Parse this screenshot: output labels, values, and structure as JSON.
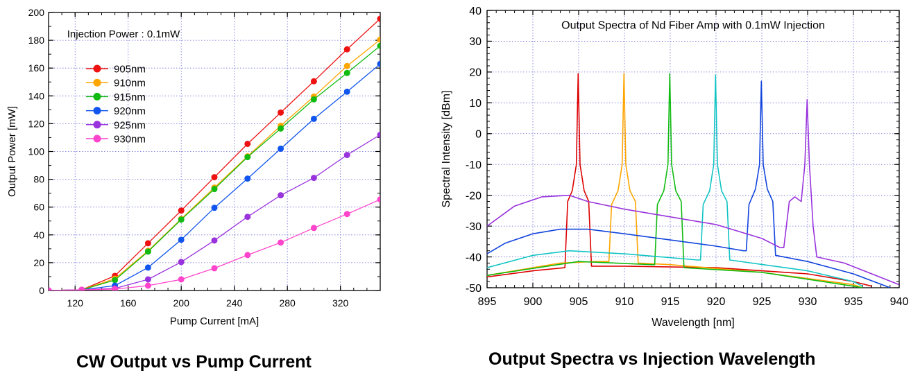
{
  "captions": {
    "left": "CW Output vs Pump Current",
    "right": "Output Spectra vs  Injection Wavelength"
  },
  "chart_data": [
    {
      "type": "line",
      "title": "Injection Power : 0.1mW",
      "xlabel": "Pump Current [mA]",
      "ylabel": "Output Power [mW]",
      "xlim": [
        100,
        350
      ],
      "ylim": [
        0,
        200
      ],
      "xticks": [
        120,
        160,
        200,
        240,
        280,
        320
      ],
      "yticks": [
        0,
        20,
        40,
        60,
        80,
        100,
        120,
        140,
        160,
        180,
        200
      ],
      "grid": true,
      "markers": true,
      "legend_position": "upper-left",
      "x": [
        100,
        125,
        150,
        175,
        200,
        225,
        250,
        275,
        300,
        325,
        350
      ],
      "series": [
        {
          "name": "905nm",
          "color": "#ee1111",
          "values": [
            0,
            0.5,
            10.5,
            34,
            57.5,
            81.5,
            105.5,
            128,
            150.5,
            173.5,
            195.5
          ]
        },
        {
          "name": "910nm",
          "color": "#ffa500",
          "values": [
            0,
            0.5,
            8.5,
            28.5,
            51.5,
            74,
            96.5,
            118.5,
            139.5,
            161.5,
            180.5
          ]
        },
        {
          "name": "915nm",
          "color": "#11bb11",
          "values": [
            0,
            0.5,
            7.5,
            28,
            51,
            73,
            96,
            116.5,
            137.5,
            156.5,
            176
          ]
        },
        {
          "name": "920nm",
          "color": "#1155ee",
          "values": [
            0,
            0.5,
            3.5,
            16.5,
            36.5,
            59.5,
            80.5,
            102,
            123.5,
            143,
            163
          ]
        },
        {
          "name": "925nm",
          "color": "#9933dd",
          "values": [
            0,
            0.5,
            1.5,
            8,
            20.5,
            36,
            53,
            68.5,
            81,
            97.5,
            112
          ]
        },
        {
          "name": "930nm",
          "color": "#ff44cc",
          "values": [
            0,
            0.5,
            1,
            3.5,
            8,
            16,
            25.5,
            34.5,
            45,
            55,
            65.5
          ]
        }
      ]
    },
    {
      "type": "line",
      "title": "Output Spectra of Nd Fiber Amp with 0.1mW Injection",
      "xlabel": "Wavelength [nm]",
      "ylabel": "Spectral Intensity [dBm]",
      "xlim": [
        895,
        940
      ],
      "ylim": [
        -50,
        40
      ],
      "xticks": [
        895,
        900,
        905,
        910,
        915,
        920,
        925,
        930,
        935,
        940
      ],
      "yticks": [
        -50,
        -40,
        -30,
        -20,
        -10,
        0,
        10,
        20,
        30,
        40
      ],
      "grid": true,
      "legend": false,
      "series": [
        {
          "color": "#dd0000",
          "points": [
            [
              895,
              -46.5
            ],
            [
              900,
              -44.5
            ],
            [
              903.5,
              -43.5
            ],
            [
              903.8,
              -22
            ],
            [
              904.3,
              -18.5
            ],
            [
              904.75,
              -10
            ],
            [
              904.95,
              19.5
            ],
            [
              905.15,
              -10
            ],
            [
              905.6,
              -18.5
            ],
            [
              906.1,
              -22
            ],
            [
              906.4,
              -43
            ],
            [
              910,
              -43
            ],
            [
              920,
              -43.5
            ],
            [
              930,
              -45.5
            ],
            [
              935,
              -48
            ],
            [
              937,
              -49.5
            ]
          ]
        },
        {
          "color": "#ffa500",
          "points": [
            [
              895,
              -46
            ],
            [
              903,
              -42
            ],
            [
              907,
              -41.5
            ],
            [
              908.3,
              -41.5
            ],
            [
              908.6,
              -23
            ],
            [
              909.3,
              -18.5
            ],
            [
              909.75,
              -10
            ],
            [
              909.95,
              19.5
            ],
            [
              910.15,
              -10
            ],
            [
              910.6,
              -18.5
            ],
            [
              911.2,
              -22
            ],
            [
              911.5,
              -42
            ],
            [
              915,
              -42.5
            ],
            [
              925,
              -45
            ],
            [
              935,
              -49
            ],
            [
              936,
              -50
            ]
          ]
        },
        {
          "color": "#11bb11",
          "points": [
            [
              895,
              -46
            ],
            [
              905,
              -41.5
            ],
            [
              913,
              -42.5
            ],
            [
              913.3,
              -42.5
            ],
            [
              913.6,
              -23
            ],
            [
              914.3,
              -18.5
            ],
            [
              914.75,
              -10
            ],
            [
              914.95,
              19.5
            ],
            [
              915.15,
              -10
            ],
            [
              915.6,
              -18.5
            ],
            [
              916.2,
              -22
            ],
            [
              916.5,
              -43.5
            ],
            [
              925,
              -45
            ],
            [
              935,
              -49.5
            ],
            [
              936,
              -50
            ]
          ]
        },
        {
          "color": "#11c4c4",
          "points": [
            [
              895,
              -43.5
            ],
            [
              900,
              -39.5
            ],
            [
              904,
              -38
            ],
            [
              910,
              -39
            ],
            [
              918,
              -41
            ],
            [
              918.3,
              -41
            ],
            [
              918.6,
              -23
            ],
            [
              919.3,
              -18.5
            ],
            [
              919.75,
              -10
            ],
            [
              919.95,
              19
            ],
            [
              920.15,
              -10
            ],
            [
              920.6,
              -18.5
            ],
            [
              921.2,
              -22
            ],
            [
              921.5,
              -41
            ],
            [
              930,
              -44.5
            ],
            [
              935,
              -48
            ],
            [
              936,
              -49.5
            ]
          ]
        },
        {
          "color": "#1144dd",
          "points": [
            [
              895,
              -39
            ],
            [
              897,
              -35.5
            ],
            [
              900,
              -32.5
            ],
            [
              903,
              -31
            ],
            [
              906,
              -31
            ],
            [
              910,
              -32.5
            ],
            [
              915,
              -34.5
            ],
            [
              920,
              -36.5
            ],
            [
              923,
              -38
            ],
            [
              923.3,
              -38
            ],
            [
              923.6,
              -23
            ],
            [
              924.3,
              -18
            ],
            [
              924.75,
              -10
            ],
            [
              924.95,
              17
            ],
            [
              925.15,
              -10
            ],
            [
              925.6,
              -18
            ],
            [
              926.2,
              -22
            ],
            [
              926.5,
              -39.5
            ],
            [
              930,
              -41.5
            ],
            [
              935,
              -45.5
            ],
            [
              939,
              -50
            ]
          ]
        },
        {
          "color": "#9933dd",
          "points": [
            [
              895,
              -30
            ],
            [
              898,
              -23.5
            ],
            [
              901,
              -20.5
            ],
            [
              904,
              -20
            ],
            [
              906,
              -22
            ],
            [
              910,
              -24.5
            ],
            [
              915,
              -27
            ],
            [
              920,
              -29.5
            ],
            [
              925,
              -34
            ],
            [
              927,
              -37
            ],
            [
              927.4,
              -37
            ],
            [
              928,
              -22
            ],
            [
              928.6,
              -20.5
            ],
            [
              929.3,
              -22
            ],
            [
              929.7,
              -10
            ],
            [
              929.95,
              11
            ],
            [
              930.2,
              -10
            ],
            [
              930.6,
              -30
            ],
            [
              931,
              -40
            ],
            [
              934,
              -42
            ],
            [
              937,
              -45.5
            ],
            [
              940,
              -49
            ]
          ]
        }
      ]
    }
  ]
}
